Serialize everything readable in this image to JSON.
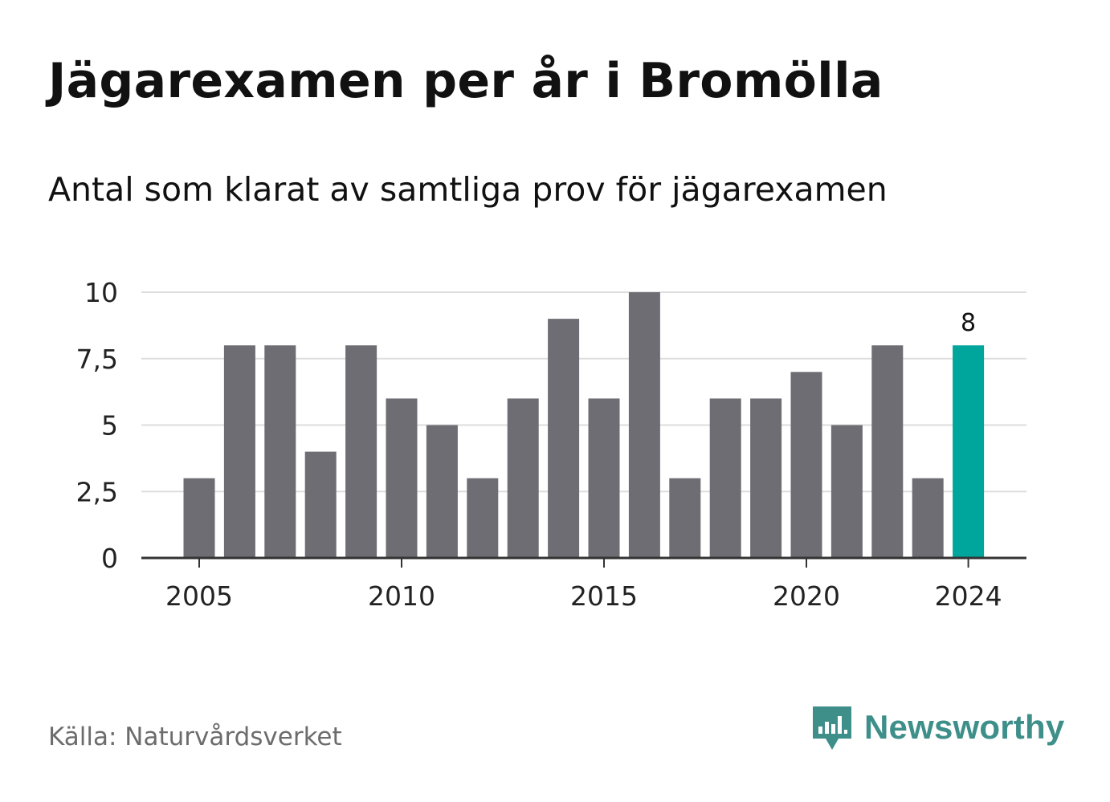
{
  "title": "Jägarexamen per år i Bromölla",
  "subtitle": "Antal som klarat av samtliga prov för jägarexamen",
  "source": "Källa: Naturvårdsverket",
  "brand": {
    "name": "Newsworthy",
    "icon": "newsworthy-logo-icon",
    "color": "#3e8f8a"
  },
  "colors": {
    "bar": "#6e6d73",
    "highlight": "#00a59b",
    "grid": "#dddddd",
    "axis": "#333333"
  },
  "chart_data": {
    "type": "bar",
    "categories": [
      2005,
      2006,
      2007,
      2008,
      2009,
      2010,
      2011,
      2012,
      2013,
      2014,
      2015,
      2016,
      2017,
      2018,
      2019,
      2020,
      2021,
      2022,
      2023,
      2024
    ],
    "values": [
      3,
      8,
      8,
      4,
      8,
      6,
      5,
      3,
      6,
      9,
      6,
      10,
      3,
      6,
      6,
      7,
      5,
      8,
      3,
      8
    ],
    "ylim": [
      0,
      10
    ],
    "yticks": [
      {
        "value": 0,
        "label": "0"
      },
      {
        "value": 2.5,
        "label": "2,5"
      },
      {
        "value": 5,
        "label": "5"
      },
      {
        "value": 7.5,
        "label": "7,5"
      },
      {
        "value": 10,
        "label": "10"
      }
    ],
    "xticks": [
      {
        "value": 2005,
        "label": "2005"
      },
      {
        "value": 2010,
        "label": "2010"
      },
      {
        "value": 2015,
        "label": "2015"
      },
      {
        "value": 2020,
        "label": "2020"
      },
      {
        "value": 2024,
        "label": "2024"
      }
    ],
    "highlight": {
      "category": 2024,
      "label": "8"
    },
    "grid": true,
    "legend": "none"
  }
}
